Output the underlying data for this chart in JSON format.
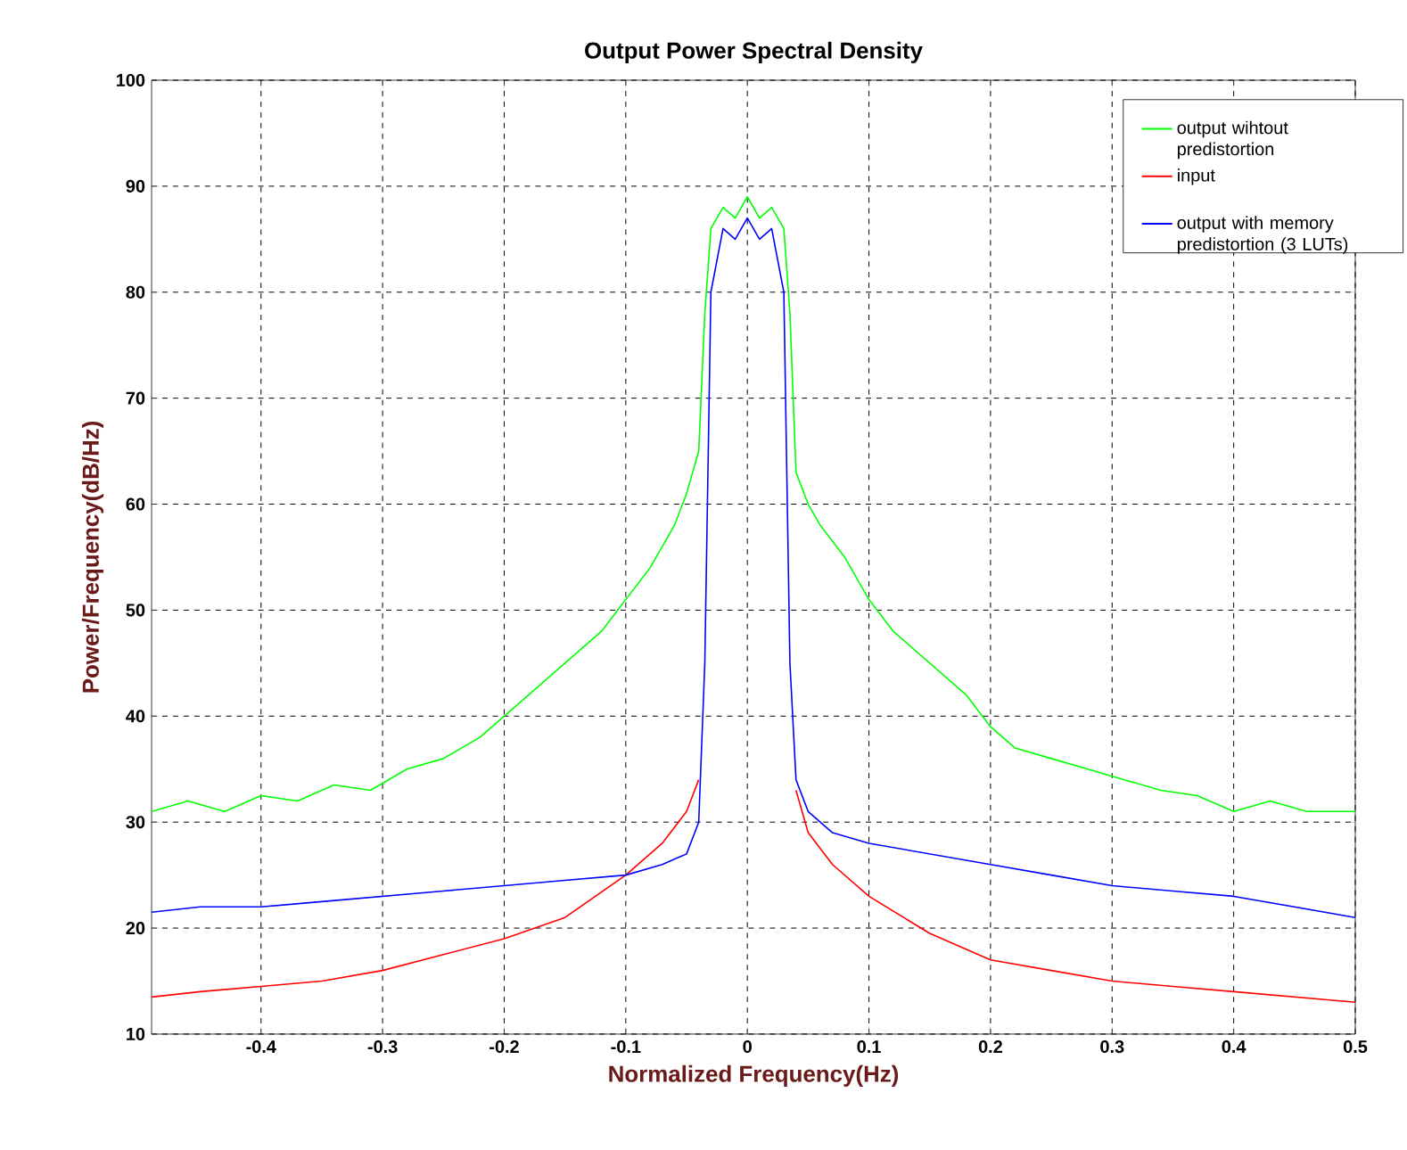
{
  "chart_data": {
    "type": "line",
    "title": "Output Power Spectral Density",
    "xlabel": "Normalized Frequency(Hz)",
    "ylabel": "Power/Frequency(dB/Hz)",
    "xlim": [
      -0.49,
      0.5
    ],
    "ylim": [
      10,
      100
    ],
    "xticks": [
      -0.4,
      -0.3,
      -0.2,
      -0.1,
      0,
      0.1,
      0.2,
      0.3,
      0.4,
      0.5
    ],
    "yticks": [
      10,
      20,
      30,
      40,
      50,
      60,
      70,
      80,
      90,
      100
    ],
    "grid": true,
    "legend": "top right",
    "marker": "none",
    "line_style": "solid",
    "series": [
      {
        "name": "output wihtout predistortion",
        "color": "#00ff00",
        "x": [
          -0.49,
          -0.46,
          -0.43,
          -0.4,
          -0.37,
          -0.34,
          -0.31,
          -0.28,
          -0.25,
          -0.22,
          -0.2,
          -0.18,
          -0.15,
          -0.12,
          -0.1,
          -0.08,
          -0.06,
          -0.05,
          -0.04,
          -0.035,
          -0.03,
          -0.02,
          -0.01,
          0,
          0.01,
          0.02,
          0.03,
          0.035,
          0.04,
          0.05,
          0.06,
          0.08,
          0.1,
          0.12,
          0.15,
          0.18,
          0.2,
          0.22,
          0.25,
          0.28,
          0.31,
          0.34,
          0.37,
          0.4,
          0.43,
          0.46,
          0.5
        ],
        "values": [
          31,
          32,
          31,
          32.5,
          32,
          33.5,
          33,
          35,
          36,
          38,
          40,
          42,
          45,
          48,
          51,
          54,
          58,
          61,
          65,
          78,
          86,
          88,
          87,
          89,
          87,
          88,
          86,
          78,
          63,
          60,
          58,
          55,
          51,
          48,
          45,
          42,
          39,
          37,
          36,
          35,
          34,
          33,
          32.5,
          31,
          32,
          31,
          31
        ]
      },
      {
        "name": "input",
        "color": "#ff0000",
        "x": [
          -0.49,
          -0.45,
          -0.4,
          -0.35,
          -0.3,
          -0.25,
          -0.2,
          -0.15,
          -0.1,
          -0.07,
          -0.05,
          -0.04,
          -0.035,
          -0.03,
          -0.02,
          0,
          0.02,
          0.03,
          0.035,
          0.04,
          0.05,
          0.07,
          0.1,
          0.15,
          0.2,
          0.25,
          0.3,
          0.35,
          0.4,
          0.45,
          0.5
        ],
        "values": [
          13.5,
          14,
          14.5,
          15,
          16,
          17.5,
          19,
          21,
          25,
          28,
          31,
          34,
          null,
          null,
          null,
          null,
          null,
          null,
          null,
          33,
          29,
          26,
          23,
          19.5,
          17,
          16,
          15,
          14.5,
          14,
          13.5,
          13
        ]
      },
      {
        "name": "output with memory predistortion (3 LUTs)",
        "color": "#0000ff",
        "x": [
          -0.49,
          -0.45,
          -0.4,
          -0.35,
          -0.3,
          -0.25,
          -0.2,
          -0.15,
          -0.1,
          -0.07,
          -0.05,
          -0.04,
          -0.035,
          -0.03,
          -0.02,
          -0.01,
          0,
          0.01,
          0.02,
          0.03,
          0.035,
          0.04,
          0.05,
          0.07,
          0.1,
          0.15,
          0.2,
          0.25,
          0.3,
          0.35,
          0.4,
          0.45,
          0.5
        ],
        "values": [
          21.5,
          22,
          22,
          22.5,
          23,
          23.5,
          24,
          24.5,
          25,
          26,
          27,
          30,
          45,
          80,
          86,
          85,
          87,
          85,
          86,
          80,
          45,
          34,
          31,
          29,
          28,
          27,
          26,
          25,
          24,
          23.5,
          23,
          22,
          21
        ]
      }
    ]
  }
}
